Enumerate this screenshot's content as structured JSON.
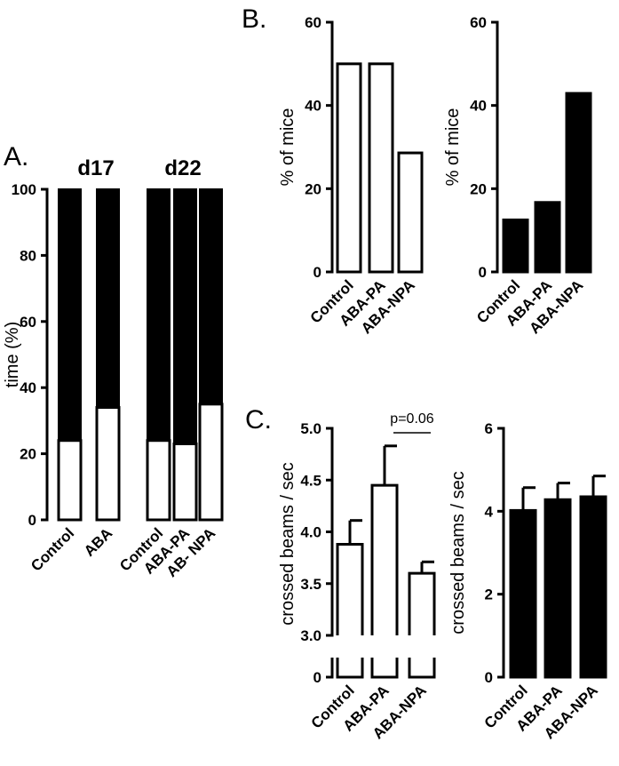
{
  "panels": [
    {
      "id": "A",
      "label": "A."
    },
    {
      "id": "B",
      "label": "B."
    },
    {
      "id": "C",
      "label": "C."
    }
  ],
  "chart_data": [
    {
      "id": "A",
      "type": "bar",
      "stacked": true,
      "ylabel": "time (%)",
      "ylim": [
        0,
        100
      ],
      "yticks": [
        0,
        20,
        40,
        60,
        80,
        100
      ],
      "groups": [
        {
          "label": "d17",
          "categories": [
            "Control",
            "ABA"
          ],
          "white": [
            24,
            34
          ],
          "black": [
            76,
            66
          ]
        },
        {
          "label": "d22",
          "categories": [
            "Control",
            "ABA-PA",
            "AB- NPA"
          ],
          "white": [
            24,
            23,
            35
          ],
          "black": [
            76,
            77,
            65
          ]
        }
      ],
      "colors": {
        "white": "#ffffff",
        "black": "#000000"
      }
    },
    {
      "id": "B-left",
      "type": "bar",
      "ylabel": "% of mice",
      "ylim": [
        0,
        60
      ],
      "yticks": [
        0,
        20,
        40,
        60
      ],
      "categories": [
        "Control",
        "ABA-PA",
        "ABA-NPA"
      ],
      "values": [
        50,
        50,
        28.6
      ],
      "color": "#ffffff"
    },
    {
      "id": "B-right",
      "type": "bar",
      "ylabel": "% of mice",
      "ylim": [
        0,
        60
      ],
      "yticks": [
        0,
        20,
        40,
        60
      ],
      "categories": [
        "Control",
        "ABA-PA",
        "ABA-NPA"
      ],
      "values": [
        12.5,
        16.7,
        42.9
      ],
      "color": "#000000"
    },
    {
      "id": "C-left",
      "type": "bar",
      "ylabel": "crossed beams / sec",
      "ylim": [
        0,
        5.0
      ],
      "axis_break": [
        0,
        3.0
      ],
      "yticks": [
        0,
        3.0,
        3.5,
        4.0,
        4.5,
        5.0
      ],
      "ytick_labels": [
        "0",
        "3.0",
        "3.5",
        "4.0",
        "4.5",
        "5.0"
      ],
      "categories": [
        "Control",
        "ABA-PA",
        "ABA-NPA"
      ],
      "values": [
        3.88,
        4.45,
        3.6
      ],
      "errors": [
        0.23,
        0.38,
        0.11
      ],
      "annotation": {
        "text": "p=0.06",
        "between": [
          1,
          2
        ]
      },
      "color": "#ffffff"
    },
    {
      "id": "C-right",
      "type": "bar",
      "ylabel": "crossed beams / sec",
      "ylim": [
        0,
        6
      ],
      "yticks": [
        0,
        2,
        4,
        6
      ],
      "categories": [
        "Control",
        "ABA-PA",
        "ABA-NPA"
      ],
      "values": [
        4.02,
        4.28,
        4.35
      ],
      "errors": [
        0.55,
        0.4,
        0.5
      ],
      "color": "#000000"
    }
  ]
}
